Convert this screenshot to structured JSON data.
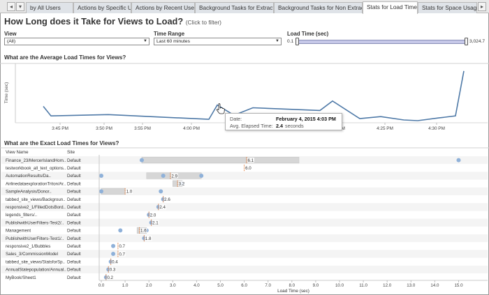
{
  "tabs": [
    {
      "label": "by All Users",
      "active": false
    },
    {
      "label": "Actions by Specific User",
      "active": false
    },
    {
      "label": "Actions by Recent Users",
      "active": false
    },
    {
      "label": "Background Tasks for Extracts",
      "active": false
    },
    {
      "label": "Background Tasks for Non Extracts",
      "active": false
    },
    {
      "label": "Stats for Load Times",
      "active": true
    },
    {
      "label": "Stats for Space Usage",
      "active": false
    }
  ],
  "header": {
    "title": "How Long does it Take for Views to Load?",
    "subtitle": "(Click to filter)"
  },
  "filters": {
    "view_label": "View",
    "view_value": "(All)",
    "time_range_label": "Time Range",
    "time_range_value": "Last 60 minutes",
    "load_time_label": "Load Time (sec)",
    "load_time_min": "0.1",
    "load_time_max": "3,024.7"
  },
  "colors": {
    "line": "#4e79a7",
    "point": "#8fb1d9",
    "bar": "#d6d6d6",
    "median": "#e07b39"
  },
  "chart_data": [
    {
      "type": "line",
      "title": "What are the Average Load Times for Views?",
      "ylabel": "Time (sec)",
      "xlabel": "",
      "x_ticks": [
        "3:45 PM",
        "3:50 PM",
        "3:55 PM",
        "4:00 PM",
        "4:20 PM",
        "4:25 PM",
        "4:30 PM"
      ],
      "x_minutes": [
        -1.2,
        0,
        8,
        18,
        20.5,
        23,
        24.5,
        35,
        38.5,
        42,
        44,
        47.5,
        49.5,
        52,
        54.5,
        59
      ],
      "values": [
        2.2,
        0.8,
        1.0,
        0.3,
        2.4,
        0.9,
        2.0,
        1.6,
        3.0,
        0.4,
        0.7,
        0.2,
        0.1,
        0.5,
        0.8,
        7.4
      ],
      "ylim": [
        0,
        8
      ],
      "tooltip": {
        "date_label": "Date:",
        "date_value": "February 4, 2015 4:03 PM",
        "elapsed_label": "Avg. Elapsed Time:",
        "elapsed_value": "2.4",
        "elapsed_unit": "seconds"
      }
    },
    {
      "type": "bar",
      "title": "What are the Exact Load Times for Views?",
      "xlabel": "Load Time (sec)",
      "col_view_name": "View Name",
      "col_site": "Site",
      "xlim": [
        0,
        16
      ],
      "x_ticks": [
        "0.0",
        "1.0",
        "2.0",
        "3.0",
        "4.0",
        "5.0",
        "6.0",
        "7.0",
        "8.0",
        "9.0",
        "10.0",
        "11.0",
        "12.0",
        "13.0",
        "14.0",
        "15.0"
      ],
      "rows": [
        {
          "view": "Finance_23/MercerIslandHom..",
          "site": "Default",
          "bar_start": 1.7,
          "bar_end": 8.3,
          "median": 6.1,
          "label": "6.1",
          "points": [
            1.7,
            15.0
          ]
        },
        {
          "view": "testworkbook_all_text_options..",
          "site": "Default",
          "bar_start": 6.0,
          "bar_end": 6.0,
          "median": 6.0,
          "label": "6.0",
          "points": []
        },
        {
          "view": "AutomationResults/Da..",
          "site": "Default",
          "bar_start": 1.9,
          "bar_end": 4.2,
          "median": 2.9,
          "label": "2.9",
          "points": [
            0.0,
            2.6,
            4.2
          ]
        },
        {
          "view": "AirlinedataexplorationTriton/Ar..",
          "site": "Default",
          "bar_start": 3.0,
          "bar_end": 3.4,
          "median": 3.2,
          "label": "3.2",
          "points": [
            3.4
          ]
        },
        {
          "view": "SampleAnalysis/Donor..",
          "site": "Default",
          "bar_start": 0.0,
          "bar_end": 1.0,
          "median": 1.0,
          "label": "1.0",
          "points": [
            0.0,
            2.5
          ]
        },
        {
          "view": "tabbed_site_views/Backgroun..",
          "site": "Default",
          "bar_start": 2.6,
          "bar_end": 2.6,
          "median": 2.6,
          "label": "2.6",
          "points": [
            2.6
          ]
        },
        {
          "view": "responsive2_1/FilledDotsBord..",
          "site": "Default",
          "bar_start": 2.4,
          "bar_end": 2.4,
          "median": 2.4,
          "label": "2.4",
          "points": [
            2.4
          ]
        },
        {
          "view": "legends_filters/..",
          "site": "Default",
          "bar_start": 2.0,
          "bar_end": 2.0,
          "median": 2.0,
          "label": "2.0",
          "points": [
            2.0
          ]
        },
        {
          "view": "PublishwithUserFilters-Test2/..",
          "site": "Default",
          "bar_start": 2.1,
          "bar_end": 2.1,
          "median": 2.1,
          "label": "2.1",
          "points": [
            2.1
          ]
        },
        {
          "view": "Management",
          "site": "Default",
          "bar_start": 1.5,
          "bar_end": 1.9,
          "median": 1.6,
          "label": "1.6",
          "points": [
            0.8,
            1.9
          ]
        },
        {
          "view": "PublishwithUserFilters-Test1/..",
          "site": "Default",
          "bar_start": 1.8,
          "bar_end": 1.8,
          "median": 1.8,
          "label": "1.8",
          "points": [
            1.8
          ]
        },
        {
          "view": "responsive2_1/Bubbles",
          "site": "Default",
          "bar_start": 0.7,
          "bar_end": 0.7,
          "median": 0.7,
          "label": "0.7",
          "points": [
            0.5
          ]
        },
        {
          "view": "Sales_3/CommissionModel",
          "site": "Default",
          "bar_start": 0.7,
          "bar_end": 0.7,
          "median": 0.7,
          "label": "0.7",
          "points": [
            0.5
          ]
        },
        {
          "view": "tabbed_site_views/StatsforSp..",
          "site": "Default",
          "bar_start": 0.4,
          "bar_end": 0.4,
          "median": 0.4,
          "label": "0.4",
          "points": [
            0.4
          ]
        },
        {
          "view": "AnnualStatepopulation/Annual..",
          "site": "Default",
          "bar_start": 0.3,
          "bar_end": 0.3,
          "median": 0.3,
          "label": "0.3",
          "points": [
            0.3
          ]
        },
        {
          "view": "MyBook/Sheet1",
          "site": "Default",
          "bar_start": 0.2,
          "bar_end": 0.2,
          "median": 0.2,
          "label": "0.2",
          "points": [
            0.2
          ]
        }
      ]
    }
  ]
}
